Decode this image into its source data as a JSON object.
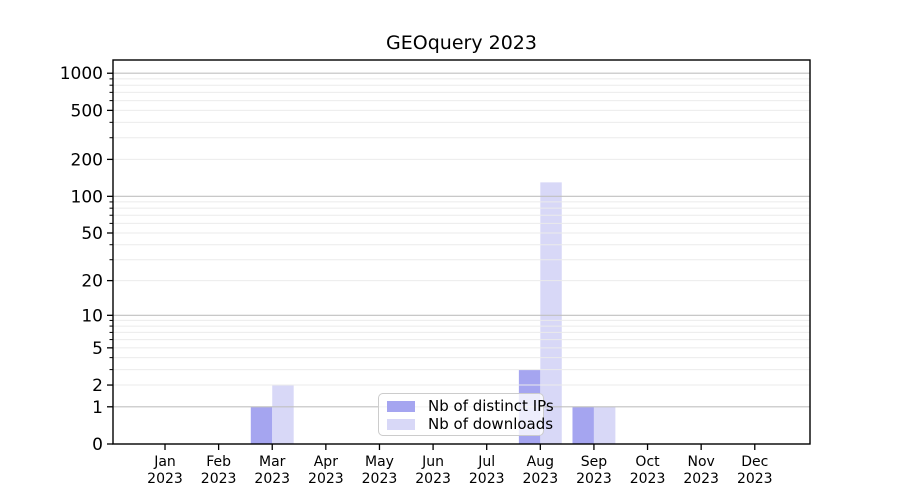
{
  "chart": {
    "title": "GEOquery 2023"
  },
  "chart_data": {
    "type": "bar",
    "title": "GEOquery 2023",
    "categories": [
      "Jan 2023",
      "Feb 2023",
      "Mar 2023",
      "Apr 2023",
      "May 2023",
      "Jun 2023",
      "Jul 2023",
      "Aug 2023",
      "Sep 2023",
      "Oct 2023",
      "Nov 2023",
      "Dec 2023"
    ],
    "x_tick_line1": [
      "Jan",
      "Feb",
      "Mar",
      "Apr",
      "May",
      "Jun",
      "Jul",
      "Aug",
      "Sep",
      "Oct",
      "Nov",
      "Dec"
    ],
    "x_tick_line2": "2023",
    "series": [
      {
        "name": "Nb of distinct IPs",
        "color": "#a5a5f0",
        "values": [
          0,
          0,
          1,
          0,
          0,
          0,
          0,
          3,
          1,
          0,
          0,
          0
        ]
      },
      {
        "name": "Nb of downloads",
        "color": "#d8d8f7",
        "values": [
          0,
          0,
          2,
          0,
          0,
          0,
          0,
          130,
          1,
          0,
          0,
          0
        ]
      }
    ],
    "y_scale": "log1p",
    "y_ticks": [
      0,
      1,
      2,
      5,
      10,
      20,
      50,
      100,
      200,
      500,
      1000
    ],
    "ylim": [
      0,
      1280
    ],
    "grid": "on",
    "legend_position": "lower center inside",
    "colors": {
      "major_grid": "#c0c0c0",
      "minor_grid": "#ebebeb",
      "axis": "#000000",
      "background": "#ffffff"
    }
  }
}
